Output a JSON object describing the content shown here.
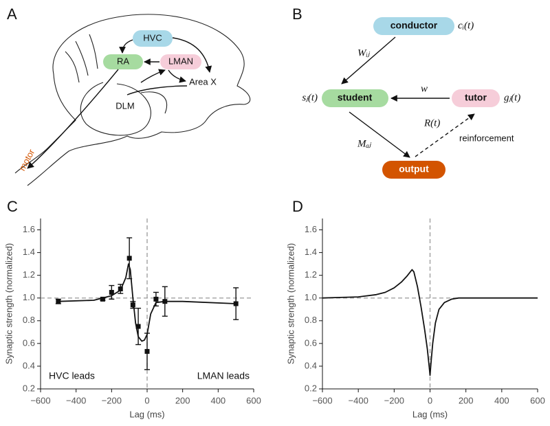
{
  "panel_labels": [
    "A",
    "B",
    "C",
    "D"
  ],
  "diagram_a": {
    "regions": [
      "HVC",
      "RA",
      "LMAN",
      "Area X",
      "DLM"
    ],
    "output": "motor"
  },
  "diagram_b": {
    "nodes": [
      "conductor",
      "student",
      "tutor",
      "output"
    ],
    "symbols": {
      "conductor": "cᵢ(t)",
      "student": "sⱼ(t)",
      "tutor": "gⱼ(t)"
    },
    "edges": [
      "Wᵢⱼ",
      "w",
      "Mₐⱼ",
      "R(t)"
    ],
    "edge_note": "reinforcement"
  },
  "chart_data": [
    {
      "type": "line",
      "ylabel": "Synaptic strength (normalized)",
      "xlabel": "Lag (ms)",
      "xlim": [
        -600,
        600
      ],
      "ylim": [
        0.2,
        1.7
      ],
      "xticks": [
        {
          "value": -600,
          "label": "−600"
        },
        {
          "value": -400,
          "label": "−400"
        },
        {
          "value": -200,
          "label": "−200"
        },
        0,
        200,
        400,
        600
      ],
      "yticks": [
        0.2,
        0.4,
        0.6,
        0.8,
        {
          "value": 1,
          "label": "1.0"
        },
        1.2,
        1.4,
        1.6
      ],
      "reference_lines": {
        "x": 0,
        "y": 1
      },
      "annotations": [
        "HVC leads",
        "LMAN leads"
      ],
      "series": [
        {
          "color": "#111111",
          "marker": "square",
          "x": [
            -500,
            -250,
            -200,
            -150,
            -100,
            -80,
            -50,
            0,
            50,
            100,
            500
          ],
          "values": [
            0.97,
            0.99,
            1.05,
            1.08,
            1.35,
            0.94,
            0.75,
            0.53,
            0.99,
            0.97,
            0.95
          ],
          "errors": [
            0.02,
            0.01,
            0.06,
            0.04,
            0.18,
            0.03,
            0.16,
            0.16,
            0.06,
            0.13,
            0.14
          ]
        },
        {
          "color": "#111111",
          "x": [
            -500,
            -300,
            -200,
            -150,
            -120,
            -105,
            -95,
            -80,
            -65,
            -50,
            -30,
            -15,
            0,
            20,
            50,
            100,
            200,
            500
          ],
          "values": [
            0.97,
            0.98,
            1.02,
            1.07,
            1.18,
            1.3,
            1.25,
            1.0,
            0.78,
            0.66,
            0.62,
            0.63,
            0.68,
            0.86,
            0.96,
            0.97,
            0.97,
            0.95
          ]
        }
      ]
    },
    {
      "type": "line",
      "ylabel": "Synaptic strength (normalized)",
      "xlabel": "Lag (ms)",
      "xlim": [
        -600,
        600
      ],
      "ylim": [
        0.2,
        1.7
      ],
      "xticks": [
        {
          "value": -600,
          "label": "−600"
        },
        {
          "value": -400,
          "label": "−400"
        },
        {
          "value": -200,
          "label": "−200"
        },
        0,
        200,
        400,
        600
      ],
      "yticks": [
        0.2,
        0.4,
        0.6,
        0.8,
        {
          "value": 1,
          "label": "1.0"
        },
        1.2,
        1.4,
        1.6
      ],
      "reference_lines": {
        "x": 0,
        "y": 1
      },
      "series": [
        {
          "color": "#111111",
          "x": [
            -600,
            -500,
            -400,
            -300,
            -250,
            -200,
            -160,
            -130,
            -110,
            -100,
            -90,
            -70,
            -50,
            -30,
            -15,
            -5,
            0,
            5,
            15,
            30,
            50,
            80,
            120,
            160,
            200,
            300,
            600
          ],
          "values": [
            1.0,
            1.005,
            1.01,
            1.03,
            1.05,
            1.09,
            1.14,
            1.19,
            1.23,
            1.25,
            1.23,
            1.1,
            0.92,
            0.72,
            0.55,
            0.4,
            0.32,
            0.42,
            0.6,
            0.78,
            0.9,
            0.96,
            0.99,
            1.0,
            1.0,
            1.0,
            1.0
          ]
        }
      ]
    }
  ]
}
